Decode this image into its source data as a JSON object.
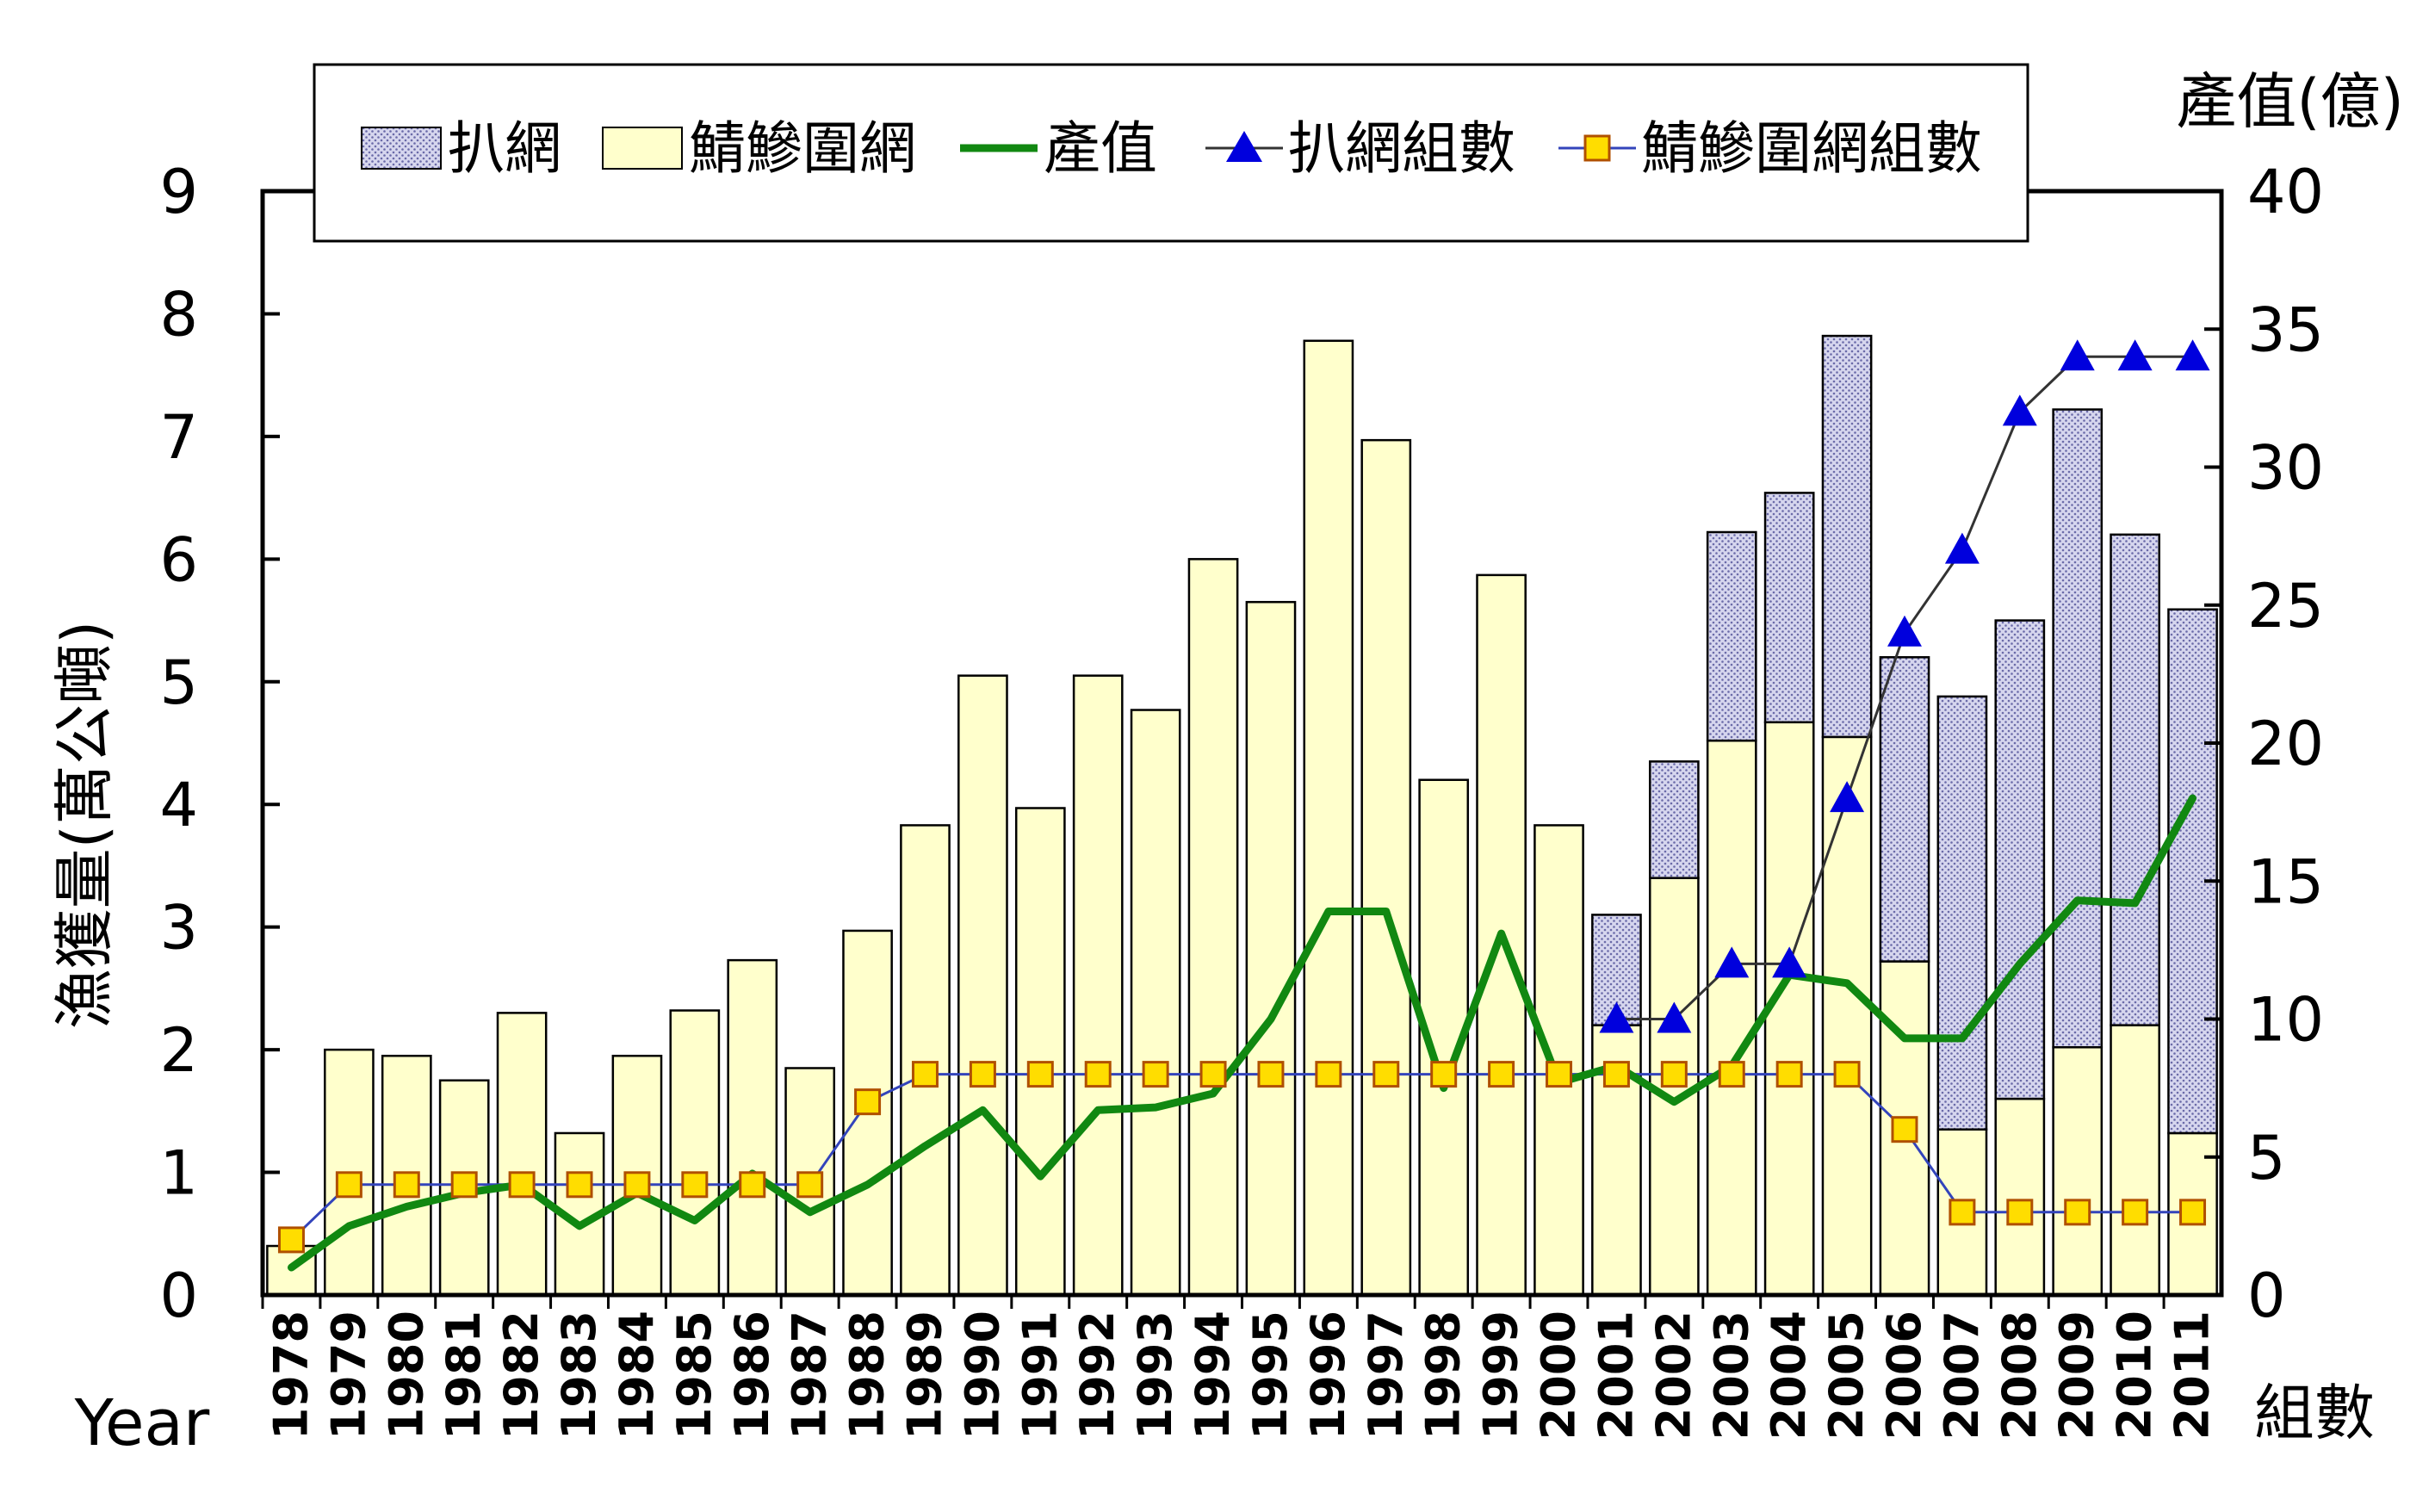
{
  "chart_data": {
    "type": "bar",
    "stacked": true,
    "categories": [
      "1978",
      "1979",
      "1980",
      "1981",
      "1982",
      "1983",
      "1984",
      "1985",
      "1986",
      "1987",
      "1988",
      "1989",
      "1990",
      "1991",
      "1992",
      "1993",
      "1994",
      "1995",
      "1996",
      "1997",
      "1998",
      "1999",
      "2000",
      "2001",
      "2002",
      "2003",
      "2004",
      "2005",
      "2006",
      "2007",
      "2008",
      "2009",
      "2010",
      "2011"
    ],
    "series": [
      {
        "name": "鯖鰺圍網",
        "type": "bar",
        "axis": "left",
        "color": "#ffffcc",
        "values": [
          0.4,
          2.0,
          1.95,
          1.75,
          2.3,
          1.32,
          1.95,
          2.32,
          2.73,
          1.85,
          2.97,
          3.83,
          5.05,
          3.97,
          5.05,
          4.77,
          6.0,
          5.65,
          7.78,
          6.97,
          4.2,
          5.87,
          3.83,
          2.2,
          3.4,
          4.52,
          4.67,
          4.55,
          2.72,
          1.35,
          1.6,
          2.02,
          2.2,
          1.32
        ]
      },
      {
        "name": "扒網",
        "type": "bar",
        "axis": "left",
        "color": "#c8c8e8",
        "values": [
          0,
          0,
          0,
          0,
          0,
          0,
          0,
          0,
          0,
          0,
          0,
          0,
          0,
          0,
          0,
          0,
          0,
          0,
          0,
          0,
          0,
          0,
          0,
          0.9,
          0.95,
          1.7,
          1.87,
          3.27,
          2.48,
          3.53,
          3.9,
          5.2,
          4.0,
          4.27
        ]
      },
      {
        "name": "產值",
        "type": "line",
        "axis": "right",
        "color": "#118811",
        "values": [
          1.0,
          2.5,
          3.2,
          3.7,
          4.0,
          2.5,
          3.7,
          2.7,
          4.4,
          3.0,
          4.0,
          5.4,
          6.7,
          4.3,
          6.7,
          6.8,
          7.3,
          10.0,
          13.9,
          13.9,
          7.5,
          13.1,
          7.7,
          8.3,
          7.0,
          8.3,
          11.6,
          11.3,
          9.3,
          9.3,
          12.0,
          14.3,
          14.2,
          18.0
        ]
      },
      {
        "name": "扒網組數",
        "type": "line-marker",
        "marker": "triangle",
        "axis": "right",
        "color": "#0000dd",
        "values": [
          null,
          null,
          null,
          null,
          null,
          null,
          null,
          null,
          null,
          null,
          null,
          null,
          null,
          null,
          null,
          null,
          null,
          null,
          null,
          null,
          null,
          null,
          null,
          10,
          10,
          12,
          12,
          18,
          24,
          27,
          32,
          34,
          34,
          34
        ]
      },
      {
        "name": "鯖鰺圍網組數",
        "type": "line-marker",
        "marker": "square",
        "axis": "right",
        "color": "#ffdd00",
        "values": [
          2,
          4,
          4,
          4,
          4,
          4,
          4,
          4,
          4,
          4,
          7,
          8,
          8,
          8,
          8,
          8,
          8,
          8,
          8,
          8,
          8,
          8,
          8,
          8,
          8,
          8,
          8,
          8,
          6,
          3,
          3,
          3,
          3,
          3
        ]
      }
    ],
    "y_left": {
      "label": "漁獲量(萬公噸)",
      "lim": [
        0,
        9
      ],
      "ticks": [
        "0",
        "1",
        "2",
        "3",
        "4",
        "5",
        "6",
        "7",
        "8",
        "9"
      ]
    },
    "y_right": {
      "label": "產值(億)",
      "lim": [
        0,
        40
      ],
      "ticks": [
        "0",
        "5",
        "10",
        "15",
        "20",
        "25",
        "30",
        "35",
        "40"
      ]
    },
    "right_bottom_label": "組數",
    "x_label": "Year",
    "legend": [
      "扒網",
      "鯖鰺圍網",
      "產值",
      "扒網組數",
      "鯖鰺圍網組數"
    ],
    "legend_position": "top",
    "grid": false
  }
}
